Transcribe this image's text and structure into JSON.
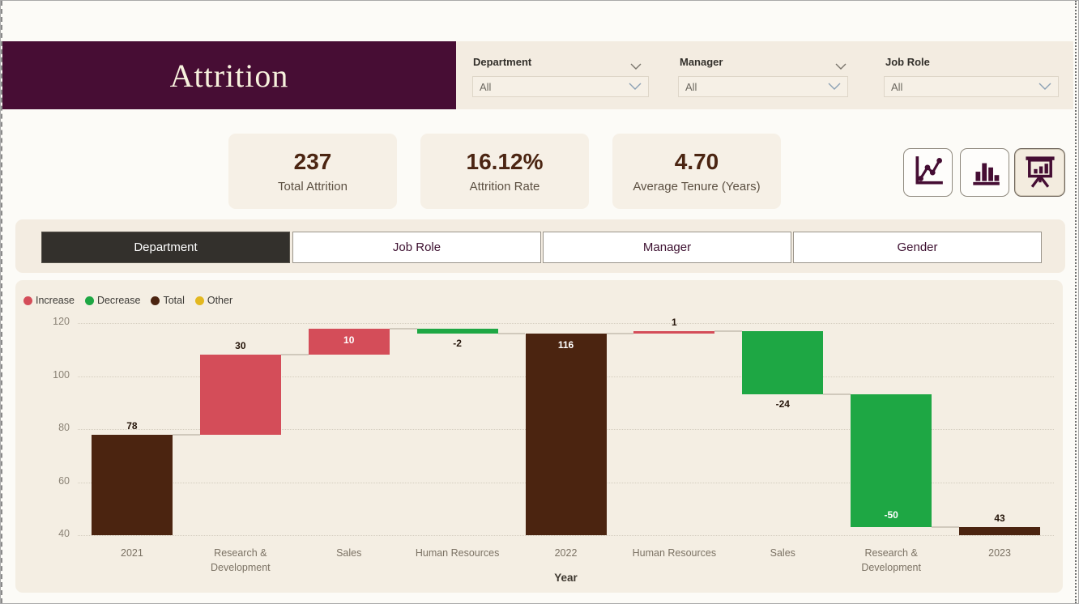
{
  "header": {
    "title": "Attrition"
  },
  "slicers": [
    {
      "label": "Department",
      "value": "All"
    },
    {
      "label": "Manager",
      "value": "All"
    },
    {
      "label": "Job Role",
      "value": "All"
    }
  ],
  "kpis": [
    {
      "value": "237",
      "label": "Total Attrition"
    },
    {
      "value": "16.12%",
      "label": "Attrition Rate"
    },
    {
      "value": "4.70",
      "label": "Average Tenure (Years)"
    }
  ],
  "view_buttons": [
    {
      "name": "line-chart-view",
      "active": false
    },
    {
      "name": "column-chart-view",
      "active": false
    },
    {
      "name": "presentation-chart-view",
      "active": true
    }
  ],
  "tabs": [
    {
      "label": "Department",
      "active": true
    },
    {
      "label": "Job Role",
      "active": false
    },
    {
      "label": "Manager",
      "active": false
    },
    {
      "label": "Gender",
      "active": false
    }
  ],
  "chart_data": {
    "type": "waterfall",
    "xlabel": "Year",
    "ylim": [
      40,
      120
    ],
    "yticks": [
      40,
      60,
      80,
      100,
      120
    ],
    "grid": "dotted-horizontal",
    "legend_position": "top-left",
    "legend": [
      {
        "label": "Increase",
        "color": "#d44d59"
      },
      {
        "label": "Decrease",
        "color": "#1ea744"
      },
      {
        "label": "Total",
        "color": "#4b2410"
      },
      {
        "label": "Other",
        "color": "#e3b820"
      }
    ],
    "colors": {
      "increase": "#d44d59",
      "decrease": "#1ea744",
      "total": "#4b2410",
      "other": "#e3b820"
    },
    "label_colors": {
      "outside": "#241409",
      "inside": "#ffffff"
    },
    "categories": [
      "2021",
      "Research & Development",
      "Sales",
      "Human Resources",
      "2022",
      "Human Resources",
      "Sales",
      "Research & Development",
      "2023"
    ],
    "bars": [
      {
        "category": "2021",
        "value": 78,
        "kind": "total",
        "label": "78",
        "label_pos": "above"
      },
      {
        "category": "Research & Development",
        "value": 30,
        "kind": "increase",
        "label": "30",
        "label_pos": "above"
      },
      {
        "category": "Sales",
        "value": 10,
        "kind": "increase",
        "label": "10",
        "label_pos": "inside"
      },
      {
        "category": "Human Resources",
        "value": -2,
        "kind": "decrease",
        "label": "-2",
        "label_pos": "below"
      },
      {
        "category": "2022",
        "value": 116,
        "kind": "total",
        "label": "116",
        "label_pos": "inside"
      },
      {
        "category": "Human Resources",
        "value": 1,
        "kind": "increase",
        "label": "1",
        "label_pos": "above"
      },
      {
        "category": "Sales",
        "value": -24,
        "kind": "decrease",
        "label": "-24",
        "label_pos": "below"
      },
      {
        "category": "Research & Development",
        "value": -50,
        "kind": "decrease",
        "label": "-50",
        "label_pos": "inside-bottom"
      },
      {
        "category": "2023",
        "value": 43,
        "kind": "total",
        "label": "43",
        "label_pos": "above"
      }
    ]
  }
}
